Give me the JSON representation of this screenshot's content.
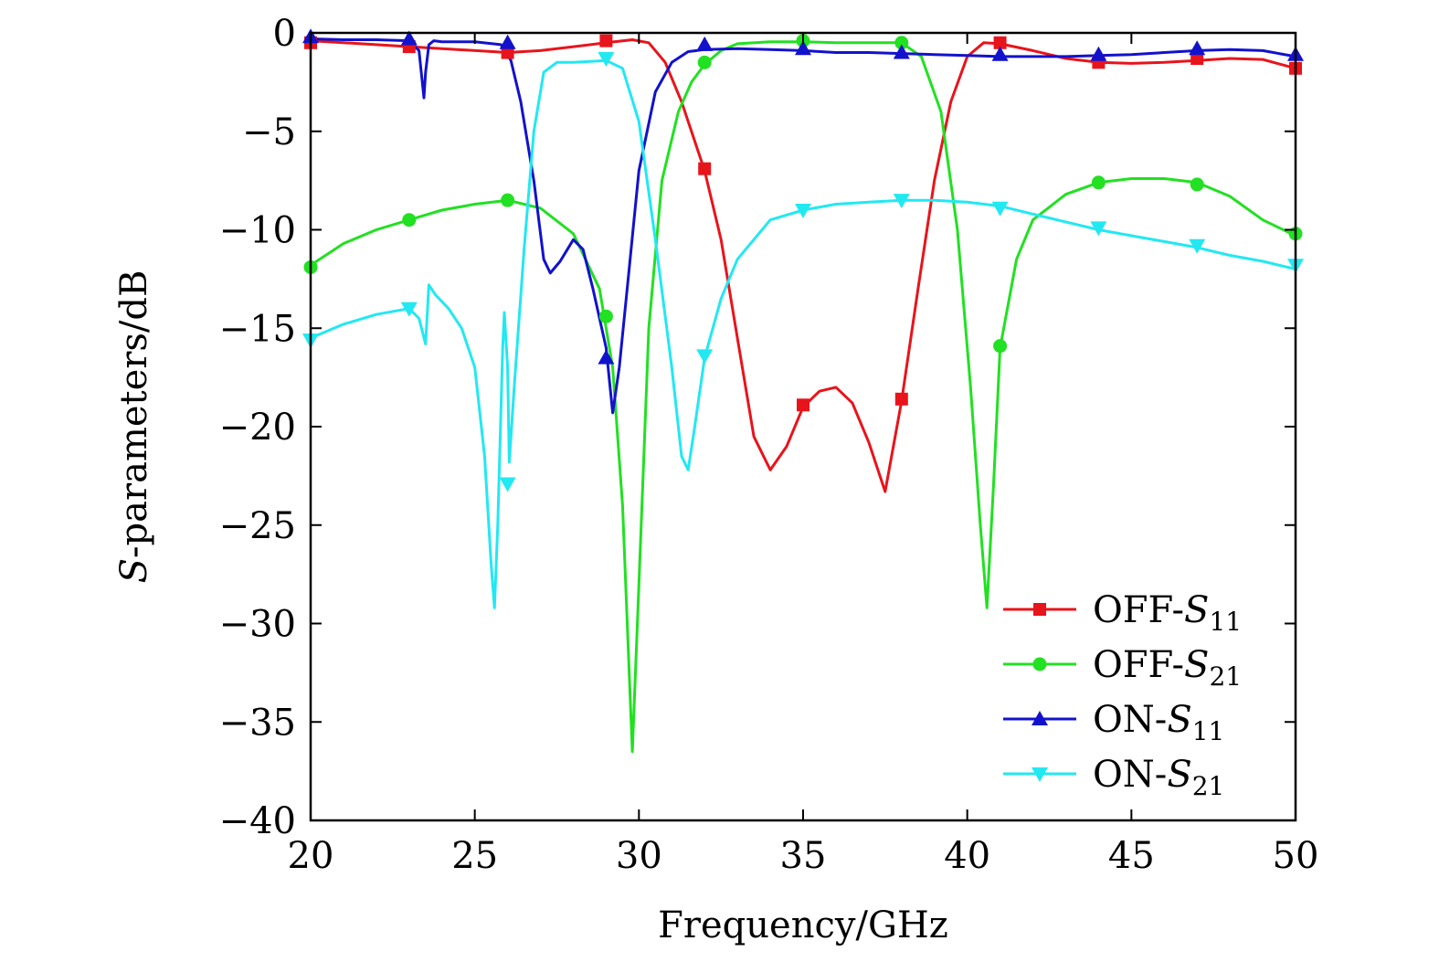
{
  "chart_data": {
    "type": "line",
    "xlabel": "Frequency/GHz",
    "ylabel": "S-parameters/dB",
    "ylabel_italic_prefix": "S",
    "ylabel_rest": "-parameters/dB",
    "xlim": [
      20,
      50
    ],
    "ylim": [
      -40,
      0
    ],
    "xticks": [
      20,
      25,
      30,
      35,
      40,
      45,
      50
    ],
    "yticks": [
      0,
      -5,
      -10,
      -15,
      -20,
      -25,
      -30,
      -35,
      -40
    ],
    "xtick_labels": [
      "20",
      "25",
      "30",
      "35",
      "40",
      "45",
      "50"
    ],
    "ytick_labels": [
      "0",
      "−5",
      "−10",
      "−15",
      "−20",
      "−25",
      "−30",
      "−35",
      "−40"
    ],
    "grid": false,
    "legend_position": "bottom-right",
    "series": [
      {
        "name": "OFF-S11",
        "name_prefix": "OFF-",
        "name_sym": "S",
        "name_sub": "11",
        "color": "#e8141b",
        "marker": "square",
        "x": [
          20,
          22,
          24,
          26,
          27,
          28,
          29,
          29.8,
          30.3,
          30.8,
          31.3,
          32,
          32.5,
          33,
          33.5,
          34,
          34.5,
          35,
          35.5,
          36,
          36.5,
          37,
          37.5,
          38,
          38.5,
          39,
          39.5,
          40,
          40.5,
          41,
          42,
          43,
          44,
          45,
          46,
          47,
          48,
          49,
          50
        ],
        "y": [
          -0.4,
          -0.6,
          -0.8,
          -1.0,
          -0.9,
          -0.7,
          -0.5,
          -0.35,
          -0.5,
          -1.5,
          -3.5,
          -7.0,
          -10.5,
          -15.5,
          -20.5,
          -22.2,
          -21.0,
          -19.0,
          -18.2,
          -18.0,
          -18.8,
          -20.8,
          -23.3,
          -18.7,
          -13.0,
          -7.5,
          -3.5,
          -1.2,
          -0.5,
          -0.55,
          -0.9,
          -1.3,
          -1.5,
          -1.55,
          -1.5,
          -1.4,
          -1.3,
          -1.35,
          -1.8
        ],
        "marker_x": [
          20,
          23,
          26,
          29,
          32,
          35,
          38,
          41,
          44,
          47,
          50
        ],
        "marker_y": [
          -0.5,
          -0.7,
          -1.0,
          -0.4,
          -6.9,
          -18.9,
          -18.6,
          -0.5,
          -1.5,
          -1.3,
          -1.8
        ]
      },
      {
        "name": "OFF-S21",
        "name_prefix": "OFF-",
        "name_sym": "S",
        "name_sub": "21",
        "color": "#22e022",
        "marker": "circle",
        "x": [
          20,
          21,
          22,
          23,
          24,
          25,
          26,
          27,
          28,
          28.8,
          29.2,
          29.5,
          29.8,
          30.0,
          30.3,
          30.7,
          31.2,
          31.6,
          32,
          32.5,
          33,
          34,
          35,
          36,
          37,
          38,
          38.6,
          39.2,
          39.7,
          40.1,
          40.4,
          40.6,
          40.8,
          41,
          41.5,
          42,
          43,
          44,
          45,
          46,
          47,
          48,
          49,
          50
        ],
        "y": [
          -11.8,
          -10.7,
          -10.0,
          -9.5,
          -9.0,
          -8.7,
          -8.5,
          -8.9,
          -10.2,
          -13.0,
          -17.0,
          -24.0,
          -36.5,
          -28.0,
          -15.0,
          -7.5,
          -4.0,
          -2.5,
          -1.6,
          -0.9,
          -0.55,
          -0.45,
          -0.45,
          -0.5,
          -0.5,
          -0.5,
          -1.2,
          -4.0,
          -10.0,
          -18.0,
          -25.0,
          -29.2,
          -23.0,
          -16.0,
          -11.5,
          -9.5,
          -8.2,
          -7.6,
          -7.4,
          -7.4,
          -7.6,
          -8.3,
          -9.5,
          -10.3
        ],
        "marker_x": [
          20,
          23,
          26,
          29,
          32,
          35,
          38,
          41,
          44,
          47,
          50
        ],
        "marker_y": [
          -11.9,
          -9.5,
          -8.5,
          -14.4,
          -1.5,
          -0.4,
          -0.5,
          -15.9,
          -7.6,
          -7.7,
          -10.2
        ]
      },
      {
        "name": "ON-S11",
        "name_prefix": "ON-",
        "name_sym": "S",
        "name_sub": "11",
        "color": "#1212cc",
        "marker": "triangle-up",
        "x": [
          20,
          21,
          22,
          23,
          23.3,
          23.45,
          23.5,
          23.6,
          23.75,
          24,
          25,
          25.8,
          26.1,
          26.4,
          26.8,
          27.1,
          27.3,
          27.6,
          28.0,
          28.3,
          28.6,
          29.0,
          29.2,
          29.4,
          29.7,
          30.0,
          30.5,
          31.0,
          31.5,
          32,
          33,
          34,
          35,
          36,
          37,
          38,
          39,
          40,
          41,
          42,
          43,
          44,
          45,
          46,
          47,
          48,
          49,
          50
        ],
        "y": [
          -0.3,
          -0.35,
          -0.35,
          -0.4,
          -0.9,
          -3.3,
          -2.0,
          -0.6,
          -0.4,
          -0.45,
          -0.45,
          -0.6,
          -1.4,
          -3.5,
          -7.5,
          -11.5,
          -12.2,
          -11.6,
          -10.5,
          -11.0,
          -13.0,
          -16.0,
          -19.3,
          -17.0,
          -12.0,
          -7.0,
          -3.0,
          -1.5,
          -0.95,
          -0.85,
          -0.8,
          -0.85,
          -0.9,
          -1.0,
          -1.0,
          -1.05,
          -1.1,
          -1.15,
          -1.2,
          -1.2,
          -1.2,
          -1.15,
          -1.1,
          -1.0,
          -0.9,
          -0.85,
          -0.9,
          -1.2
        ],
        "marker_x": [
          20,
          23,
          26,
          29,
          32,
          35,
          38,
          41,
          44,
          47,
          50
        ],
        "marker_y": [
          -0.2,
          -0.3,
          -0.5,
          -16.5,
          -0.6,
          -0.8,
          -1.0,
          -1.1,
          -1.1,
          -0.8,
          -1.1
        ]
      },
      {
        "name": "ON-S21",
        "name_prefix": "ON-",
        "name_sym": "S",
        "name_sub": "21",
        "color": "#22e8f2",
        "marker": "triangle-down",
        "x": [
          20,
          21,
          22,
          23,
          23.3,
          23.5,
          23.6,
          23.8,
          24.2,
          24.6,
          25.0,
          25.3,
          25.5,
          25.6,
          25.7,
          25.85,
          25.9,
          26.0,
          26.05,
          26.2,
          26.5,
          26.8,
          27.1,
          27.5,
          28,
          29,
          29.5,
          30,
          30.5,
          31.0,
          31.3,
          31.5,
          31.7,
          32,
          32.5,
          33,
          34,
          35,
          36,
          37,
          38,
          39,
          40,
          41,
          42,
          43,
          44,
          45,
          46,
          47,
          48,
          49,
          50
        ],
        "y": [
          -15.5,
          -14.8,
          -14.3,
          -14.0,
          -14.5,
          -15.8,
          -12.8,
          -13.3,
          -14.0,
          -15.0,
          -17.0,
          -21.5,
          -27.0,
          -29.2,
          -25.0,
          -16.0,
          -14.2,
          -17.0,
          -21.8,
          -18.0,
          -11.0,
          -5.0,
          -2.0,
          -1.5,
          -1.5,
          -1.4,
          -1.8,
          -4.5,
          -10.5,
          -17.0,
          -21.5,
          -22.2,
          -20.0,
          -16.5,
          -13.5,
          -11.5,
          -9.5,
          -9.0,
          -8.7,
          -8.6,
          -8.5,
          -8.5,
          -8.6,
          -8.8,
          -9.2,
          -9.6,
          -10.0,
          -10.3,
          -10.6,
          -10.9,
          -11.3,
          -11.6,
          -12.0
        ],
        "marker_x": [
          20,
          23,
          26,
          29,
          32,
          35,
          38,
          41,
          44,
          47,
          50
        ],
        "marker_y": [
          -15.6,
          -14.0,
          -22.9,
          -1.3,
          -16.4,
          -9.0,
          -8.5,
          -8.9,
          -9.9,
          -10.8,
          -11.8
        ]
      }
    ]
  }
}
